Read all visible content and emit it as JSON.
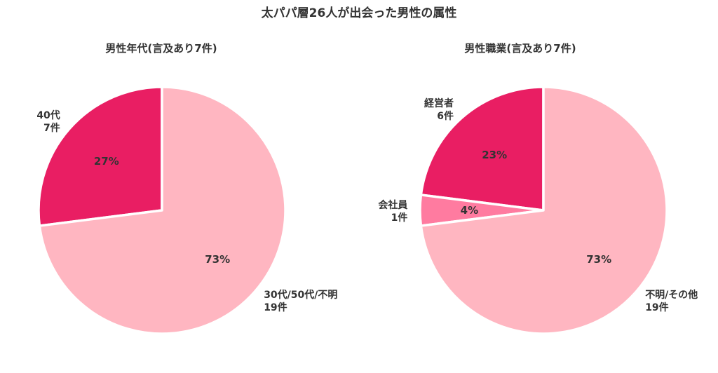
{
  "title": "太パパ層26人が出会った男性の属性",
  "colors": {
    "dark": "#E91E63",
    "medium": "#FF7BA0",
    "light": "#FFB6C1",
    "edge": "#FFFFFF"
  },
  "chart_data": [
    {
      "type": "pie",
      "title": "男性年代(言及あり7件)",
      "slices": [
        {
          "name": "40代",
          "count_label": "7件",
          "value": 27,
          "pct_label": "27%",
          "color": "#E91E63"
        },
        {
          "name": "30代/50代/不明",
          "count_label": "19件",
          "value": 73,
          "pct_label": "73%",
          "color": "#FFB6C1"
        }
      ]
    },
    {
      "type": "pie",
      "title": "男性職業(言及あり7件)",
      "slices": [
        {
          "name": "経営者",
          "count_label": "6件",
          "value": 23,
          "pct_label": "23%",
          "color": "#E91E63"
        },
        {
          "name": "会社員",
          "count_label": "1件",
          "value": 4,
          "pct_label": "4%",
          "color": "#FF7BA0"
        },
        {
          "name": "不明/その他",
          "count_label": "19件",
          "value": 73,
          "pct_label": "73%",
          "color": "#FFB6C1"
        }
      ]
    }
  ]
}
